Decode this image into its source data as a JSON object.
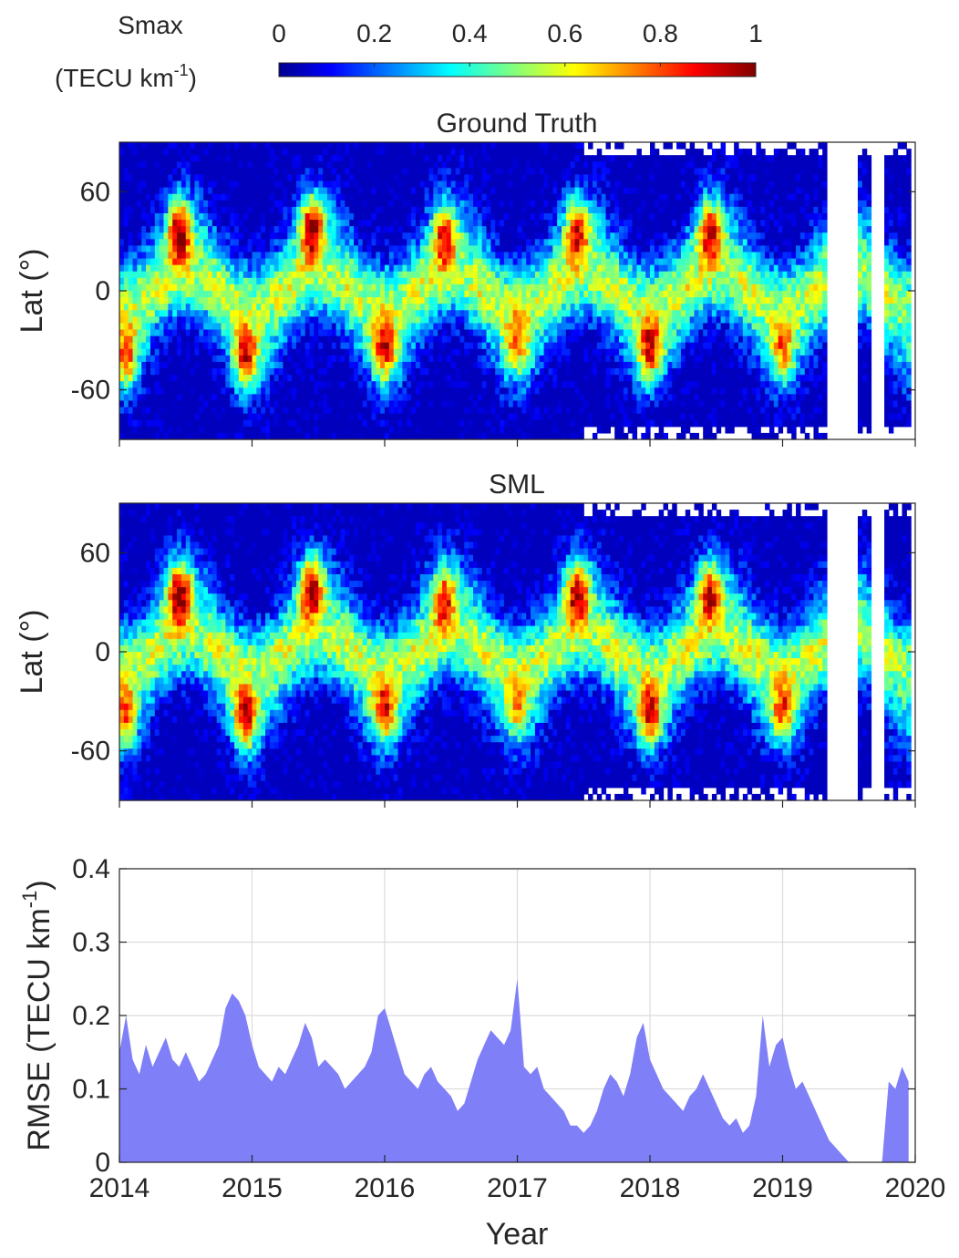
{
  "colorbar": {
    "label_line1": "Smax",
    "label_line2_main": "(TECU km",
    "label_line2_sup": "-1",
    "label_line2_end": ")",
    "ticks": [
      "0",
      "0.2",
      "0.4",
      "0.6",
      "0.8",
      "1"
    ],
    "colormap": "jet",
    "range": [
      0,
      1
    ]
  },
  "chart_data": [
    {
      "type": "heatmap",
      "title": "Ground Truth",
      "ylabel": "Lat (°)",
      "xlim": [
        2014,
        2020
      ],
      "ylim": [
        -90,
        90
      ],
      "yticks": [
        -60,
        0,
        60
      ],
      "ytick_labels": [
        "-60",
        "0",
        "60"
      ],
      "xticks": [
        2014,
        2015,
        2016,
        2017,
        2018,
        2019,
        2020
      ],
      "value_range": [
        0,
        1
      ],
      "colormap": "jet",
      "hotspots": [
        {
          "year": 2014.45,
          "lat": 35,
          "value": 0.95
        },
        {
          "year": 2015.45,
          "lat": 38,
          "value": 0.95
        },
        {
          "year": 2016.45,
          "lat": 32,
          "value": 0.8
        },
        {
          "year": 2017.45,
          "lat": 35,
          "value": 0.85
        },
        {
          "year": 2018.45,
          "lat": 35,
          "value": 0.85
        },
        {
          "year": 2014.95,
          "lat": -40,
          "value": 0.9
        },
        {
          "year": 2016.0,
          "lat": -35,
          "value": 0.85
        },
        {
          "year": 2017.0,
          "lat": -30,
          "value": 0.7
        },
        {
          "year": 2018.0,
          "lat": -35,
          "value": 0.85
        },
        {
          "year": 2019.0,
          "lat": -35,
          "value": 0.7
        },
        {
          "year": 2014.05,
          "lat": -40,
          "value": 0.8
        }
      ],
      "data_gaps": [
        [
          2019.33,
          2019.55
        ],
        [
          2019.66,
          2019.76
        ]
      ]
    },
    {
      "type": "heatmap",
      "title": "SML",
      "ylabel": "Lat (°)",
      "xlim": [
        2014,
        2020
      ],
      "ylim": [
        -90,
        90
      ],
      "yticks": [
        -60,
        0,
        60
      ],
      "ytick_labels": [
        "-60",
        "0",
        "60"
      ],
      "xticks": [
        2014,
        2015,
        2016,
        2017,
        2018,
        2019,
        2020
      ],
      "value_range": [
        0,
        1
      ],
      "colormap": "jet",
      "hotspots": [
        {
          "year": 2014.45,
          "lat": 35,
          "value": 0.95
        },
        {
          "year": 2015.45,
          "lat": 38,
          "value": 0.95
        },
        {
          "year": 2016.45,
          "lat": 32,
          "value": 0.8
        },
        {
          "year": 2017.45,
          "lat": 35,
          "value": 0.9
        },
        {
          "year": 2018.45,
          "lat": 35,
          "value": 0.85
        },
        {
          "year": 2014.95,
          "lat": -40,
          "value": 0.9
        },
        {
          "year": 2016.0,
          "lat": -35,
          "value": 0.8
        },
        {
          "year": 2017.0,
          "lat": -32,
          "value": 0.65
        },
        {
          "year": 2018.0,
          "lat": -38,
          "value": 0.85
        },
        {
          "year": 2019.0,
          "lat": -35,
          "value": 0.75
        },
        {
          "year": 2014.05,
          "lat": -40,
          "value": 0.75
        }
      ],
      "data_gaps": [
        [
          2019.33,
          2019.55
        ],
        [
          2019.66,
          2019.76
        ]
      ]
    },
    {
      "type": "area",
      "title": "",
      "xlabel": "Year",
      "ylabel_main": "RMSE (TECU km",
      "ylabel_sup": "-1",
      "ylabel_end": ")",
      "xlim": [
        2014,
        2020
      ],
      "ylim": [
        0,
        0.4
      ],
      "yticks": [
        0,
        0.1,
        0.2,
        0.3,
        0.4
      ],
      "ytick_labels": [
        "0",
        "0.1",
        "0.2",
        "0.3",
        "0.4"
      ],
      "xticks": [
        2014,
        2015,
        2016,
        2017,
        2018,
        2019,
        2020
      ],
      "xtick_labels": [
        "2014",
        "2015",
        "2016",
        "2017",
        "2018",
        "2019",
        "2020"
      ],
      "grid": true,
      "fill_color": "#7f7ff7",
      "x": [
        2014.0,
        2014.05,
        2014.1,
        2014.15,
        2014.2,
        2014.25,
        2014.3,
        2014.35,
        2014.4,
        2014.45,
        2014.5,
        2014.55,
        2014.6,
        2014.65,
        2014.7,
        2014.75,
        2014.8,
        2014.85,
        2014.9,
        2014.95,
        2015.0,
        2015.05,
        2015.1,
        2015.15,
        2015.2,
        2015.25,
        2015.3,
        2015.35,
        2015.4,
        2015.45,
        2015.5,
        2015.55,
        2015.6,
        2015.65,
        2015.7,
        2015.75,
        2015.8,
        2015.85,
        2015.9,
        2015.95,
        2016.0,
        2016.05,
        2016.1,
        2016.15,
        2016.2,
        2016.25,
        2016.3,
        2016.35,
        2016.4,
        2016.45,
        2016.5,
        2016.55,
        2016.6,
        2016.65,
        2016.7,
        2016.75,
        2016.8,
        2016.85,
        2016.9,
        2016.95,
        2017.0,
        2017.05,
        2017.1,
        2017.15,
        2017.2,
        2017.25,
        2017.3,
        2017.35,
        2017.4,
        2017.45,
        2017.5,
        2017.55,
        2017.6,
        2017.65,
        2017.7,
        2017.75,
        2017.8,
        2017.85,
        2017.9,
        2017.95,
        2018.0,
        2018.05,
        2018.1,
        2018.15,
        2018.2,
        2018.25,
        2018.3,
        2018.35,
        2018.4,
        2018.45,
        2018.5,
        2018.55,
        2018.6,
        2018.65,
        2018.7,
        2018.75,
        2018.8,
        2018.85,
        2018.9,
        2018.95,
        2019.0,
        2019.05,
        2019.1,
        2019.15,
        2019.2,
        2019.25,
        2019.3,
        2019.35,
        2019.4,
        2019.45,
        2019.5,
        2019.55,
        2019.6,
        2019.65,
        2019.7,
        2019.75,
        2019.8,
        2019.85,
        2019.9,
        2019.95
      ],
      "y": [
        0.15,
        0.2,
        0.14,
        0.12,
        0.16,
        0.13,
        0.15,
        0.17,
        0.14,
        0.13,
        0.15,
        0.13,
        0.11,
        0.12,
        0.14,
        0.16,
        0.21,
        0.23,
        0.22,
        0.2,
        0.16,
        0.13,
        0.12,
        0.11,
        0.13,
        0.12,
        0.14,
        0.16,
        0.19,
        0.17,
        0.13,
        0.14,
        0.13,
        0.12,
        0.1,
        0.11,
        0.12,
        0.13,
        0.15,
        0.2,
        0.21,
        0.18,
        0.15,
        0.12,
        0.11,
        0.1,
        0.12,
        0.13,
        0.11,
        0.1,
        0.09,
        0.07,
        0.08,
        0.11,
        0.14,
        0.16,
        0.18,
        0.17,
        0.16,
        0.18,
        0.25,
        0.13,
        0.12,
        0.13,
        0.1,
        0.09,
        0.08,
        0.07,
        0.05,
        0.05,
        0.04,
        0.05,
        0.07,
        0.1,
        0.12,
        0.11,
        0.09,
        0.12,
        0.17,
        0.19,
        0.14,
        0.12,
        0.1,
        0.09,
        0.08,
        0.07,
        0.09,
        0.1,
        0.12,
        0.1,
        0.08,
        0.06,
        0.05,
        0.06,
        0.04,
        0.05,
        0.09,
        0.2,
        0.13,
        0.16,
        0.17,
        0.13,
        0.1,
        0.11,
        0.09,
        0.07,
        0.05,
        0.03,
        0.02,
        0.01,
        0.0,
        0.0,
        0.0,
        0.0,
        0.0,
        0.0,
        0.11,
        0.1,
        0.13,
        0.11
      ]
    }
  ]
}
